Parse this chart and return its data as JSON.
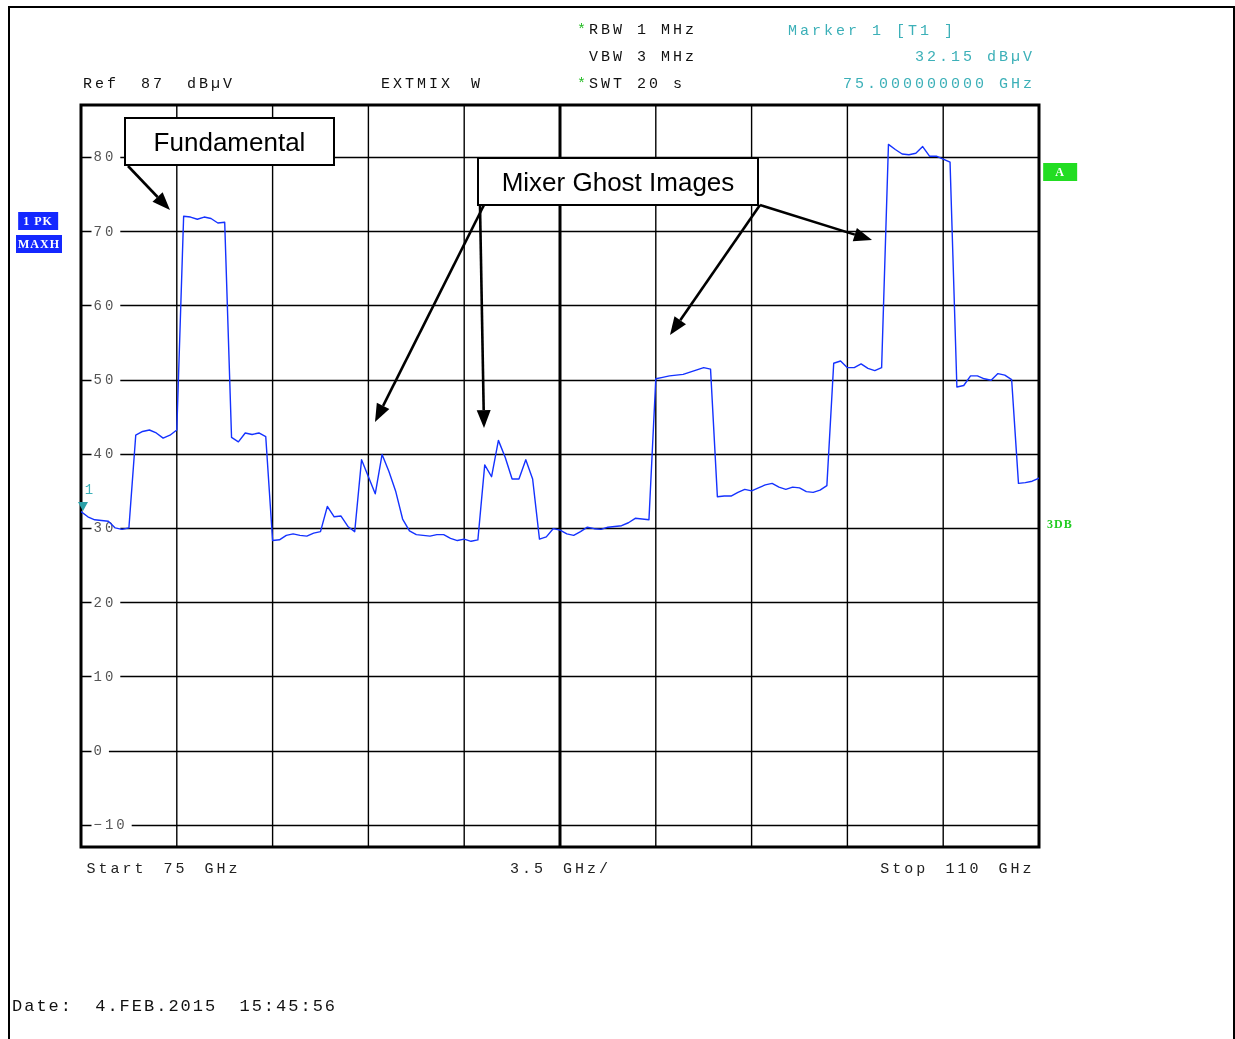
{
  "chart_data": {
    "type": "line",
    "categories": [
      null,
      null,
      null,
      null,
      null,
      null,
      null,
      null,
      null,
      null,
      null,
      null,
      "Start 75 GHz",
      null,
      null,
      null,
      null,
      null,
      null,
      null,
      null,
      null,
      null,
      null,
      null,
      null,
      null,
      null,
      null,
      null,
      null,
      null,
      null,
      null,
      null,
      null,
      null,
      null,
      null,
      null,
      null,
      null,
      null,
      null,
      null,
      null,
      null,
      null,
      null,
      null,
      null,
      null,
      null,
      null,
      null,
      null,
      null,
      null,
      null,
      null,
      null,
      null,
      null,
      null,
      null,
      null,
      null,
      null,
      null,
      null,
      "3.5 GHz/",
      null,
      null,
      null,
      null,
      null,
      null,
      null,
      null,
      null,
      null,
      null,
      null,
      null,
      null,
      null,
      null,
      null,
      null,
      null,
      null,
      null,
      null,
      null,
      null,
      null,
      null,
      null,
      null,
      null,
      null,
      null,
      null,
      null,
      null,
      null,
      null,
      null,
      null,
      null,
      null,
      null,
      null,
      null,
      null,
      null,
      null,
      null,
      null,
      null,
      null,
      null,
      null,
      null,
      null,
      null,
      null,
      null,
      "Stop 110 GHz",
      null,
      null,
      null,
      null,
      null,
      null,
      null,
      null,
      null,
      null,
      null,
      null
    ],
    "series": [
      {
        "color": "#1432ff",
        "values": [
          32.2,
          31.5,
          31.1,
          31.0,
          30.9,
          30.0,
          29.8,
          30.0,
          42.5,
          43.0,
          43.2,
          42.8,
          42.1,
          42.5,
          43.2,
          72.0,
          71.9,
          71.6,
          71.9,
          71.7,
          71.1,
          71.2,
          42.2,
          41.6,
          42.8,
          42.6,
          42.8,
          42.3,
          28.3,
          28.4,
          29.0,
          29.2,
          29.0,
          28.9,
          29.3,
          29.5,
          32.9,
          31.5,
          31.6,
          30.2,
          29.5,
          39.2,
          36.9,
          34.6,
          39.9,
          37.6,
          34.9,
          31.2,
          29.6,
          29.1,
          29.0,
          28.9,
          29.1,
          29.1,
          28.6,
          28.3,
          28.5,
          28.2,
          28.4,
          38.5,
          36.9,
          41.8,
          39.5,
          36.6,
          36.6,
          39.2,
          36.6,
          28.5,
          28.8,
          29.9,
          29.7,
          29.2,
          29.0,
          29.5,
          30.1,
          29.9,
          29.8,
          30.1,
          30.2,
          30.3,
          30.7,
          31.3,
          31.2,
          31.1,
          50.1,
          50.3,
          50.5,
          50.6,
          50.7,
          51.0,
          51.3,
          51.6,
          51.4,
          34.2,
          34.3,
          34.3,
          34.8,
          35.2,
          35.0,
          35.4,
          35.8,
          36.0,
          35.5,
          35.2,
          35.5,
          35.4,
          34.9,
          34.8,
          35.1,
          35.7,
          52.2,
          52.5,
          51.6,
          51.6,
          52.1,
          51.5,
          51.2,
          51.6,
          81.7,
          81.0,
          80.4,
          80.3,
          80.5,
          81.4,
          80.1,
          80.1,
          79.7,
          79.3,
          49.0,
          49.2,
          50.5,
          50.5,
          50.1,
          49.9,
          50.8,
          50.6,
          50.0,
          36.0,
          36.1,
          36.3,
          36.7
        ]
      }
    ],
    "ylim": [
      -13,
      87
    ],
    "yticks": [
      -10,
      0,
      10,
      20,
      30,
      40,
      50,
      60,
      70,
      80
    ],
    "grid": true,
    "annotations": [
      "Fundamental",
      "Mixer Ghost Images",
      "*RBW 1 MHz",
      "VBW 3 MHz",
      "*SWT 20 s",
      "Marker 1 [T1 ]",
      "32.15 dBµV",
      "75.000000000 GHz",
      "Ref 87 dBµV",
      "EXTMIX W",
      "1 PK",
      "MAXH",
      "A",
      "3DB",
      "1",
      "Date: 4.FEB.2015 15:45:56"
    ]
  }
}
